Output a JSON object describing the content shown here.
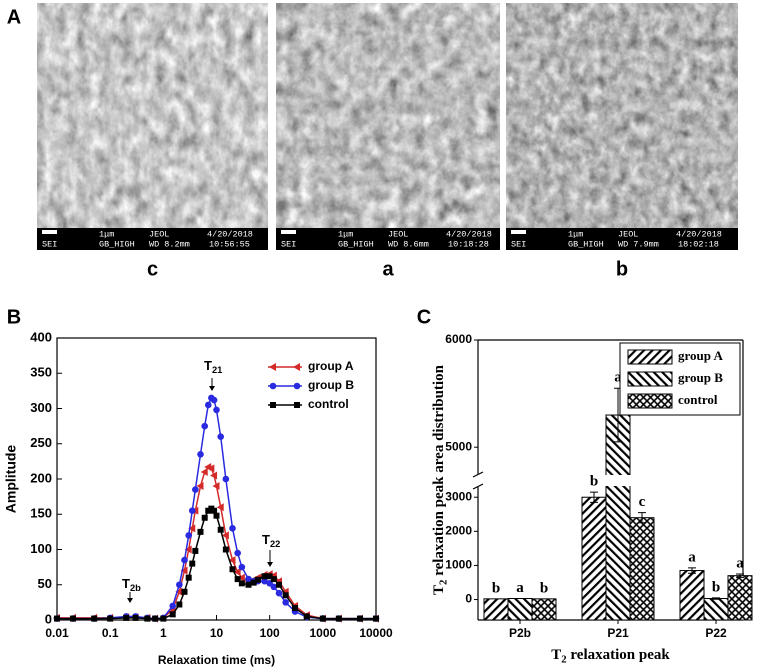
{
  "figure": {
    "panel_labels": [
      "A",
      "B",
      "C"
    ],
    "images": [
      {
        "caption": "c",
        "scale": "1μm",
        "maker": "JEOL",
        "date": "4/20/2018",
        "mode": "SEI",
        "setting": "GB_HIGH",
        "wd": "WD 8.2mm",
        "time": "10:56:55"
      },
      {
        "caption": "a",
        "scale": "1μm",
        "maker": "JEOL",
        "date": "4/20/2018",
        "mode": "SEI",
        "setting": "GB_HIGH",
        "wd": "WD 8.6mm",
        "time": "10:18:28"
      },
      {
        "caption": "b",
        "scale": "1μm",
        "maker": "JEOL",
        "date": "4/20/2018",
        "mode": "SEI",
        "setting": "GB_HIGH",
        "wd": "WD 7.9mm",
        "time": "18:02:18"
      }
    ]
  },
  "chart_data": [
    {
      "type": "line",
      "x_label": "Relaxation time (ms)",
      "y_label": "Amplitude",
      "x_scale": "log",
      "xlim": [
        0.01,
        10000
      ],
      "xticks": [
        0.01,
        0.1,
        1,
        10,
        100,
        1000,
        10000
      ],
      "ylim": [
        0,
        400
      ],
      "yticks": [
        0,
        50,
        100,
        150,
        200,
        250,
        300,
        350,
        400
      ],
      "legend": "upper right",
      "x": [
        0.01,
        0.02,
        0.05,
        0.1,
        0.2,
        0.3,
        0.5,
        0.7,
        1,
        1.5,
        2,
        2.5,
        3,
        3.5,
        4,
        5,
        6,
        7,
        8,
        9,
        10,
        12,
        15,
        20,
        25,
        30,
        40,
        50,
        60,
        80,
        100,
        120,
        150,
        200,
        300,
        500,
        1000,
        2000,
        5000,
        10000
      ],
      "series": [
        {
          "name": "group A",
          "color": "#d42a2a",
          "marker": "triangle-left",
          "values": [
            3,
            3,
            3,
            3,
            4,
            4,
            3,
            2,
            3,
            15,
            40,
            70,
            100,
            130,
            155,
            190,
            210,
            217,
            215,
            205,
            190,
            160,
            120,
            85,
            68,
            60,
            55,
            57,
            60,
            64,
            65,
            63,
            55,
            40,
            20,
            7,
            2,
            2,
            2,
            2
          ]
        },
        {
          "name": "group B",
          "color": "#2a2ae0",
          "marker": "circle",
          "values": [
            2,
            2,
            2,
            3,
            5,
            5,
            3,
            2,
            3,
            20,
            50,
            85,
            120,
            155,
            185,
            235,
            275,
            305,
            315,
            312,
            298,
            260,
            200,
            130,
            95,
            75,
            58,
            55,
            55,
            55,
            52,
            47,
            38,
            25,
            12,
            4,
            2,
            2,
            2,
            2
          ]
        },
        {
          "name": "control",
          "color": "#000000",
          "marker": "square",
          "values": [
            2,
            2,
            2,
            2,
            3,
            3,
            2,
            2,
            2,
            8,
            22,
            40,
            60,
            80,
            98,
            125,
            145,
            155,
            158,
            155,
            148,
            128,
            100,
            72,
            58,
            52,
            50,
            53,
            57,
            62,
            62,
            58,
            50,
            35,
            17,
            5,
            2,
            2,
            2,
            2
          ]
        }
      ],
      "annotations": [
        {
          "main": "T",
          "sub": "2b"
        },
        {
          "main": "T",
          "sub": "21"
        },
        {
          "main": "T",
          "sub": "22"
        }
      ]
    },
    {
      "type": "bar",
      "x_label": {
        "main": "T",
        "sub": "2",
        "tail": " relaxation peak"
      },
      "y_label": {
        "main": "T",
        "sub": "2",
        "tail": " relaxation peak area distribution"
      },
      "categories": [
        "P2b",
        "P21",
        "P22"
      ],
      "ylim": [
        -600,
        6000
      ],
      "y_break": [
        3300,
        4750
      ],
      "yticks": [
        0,
        1000,
        2000,
        3000,
        5000,
        6000
      ],
      "legend": "upper right",
      "series": [
        {
          "name": "group A",
          "color": "#000000",
          "pattern": "hatch-right",
          "values": [
            20,
            3000,
            850
          ],
          "errors": [
            null,
            150,
            80
          ],
          "letters": [
            "b",
            "b",
            "a"
          ]
        },
        {
          "name": "group B",
          "color": "#000000",
          "pattern": "hatch-left",
          "values": [
            30,
            5300,
            30
          ],
          "errors": [
            null,
            250,
            20
          ],
          "letters": [
            "a",
            "a",
            "b"
          ]
        },
        {
          "name": "control",
          "color": "#000000",
          "pattern": "cross",
          "values": [
            20,
            2400,
            700
          ],
          "errors": [
            null,
            150,
            50
          ],
          "letters": [
            "b",
            "c",
            "a"
          ]
        }
      ]
    }
  ]
}
